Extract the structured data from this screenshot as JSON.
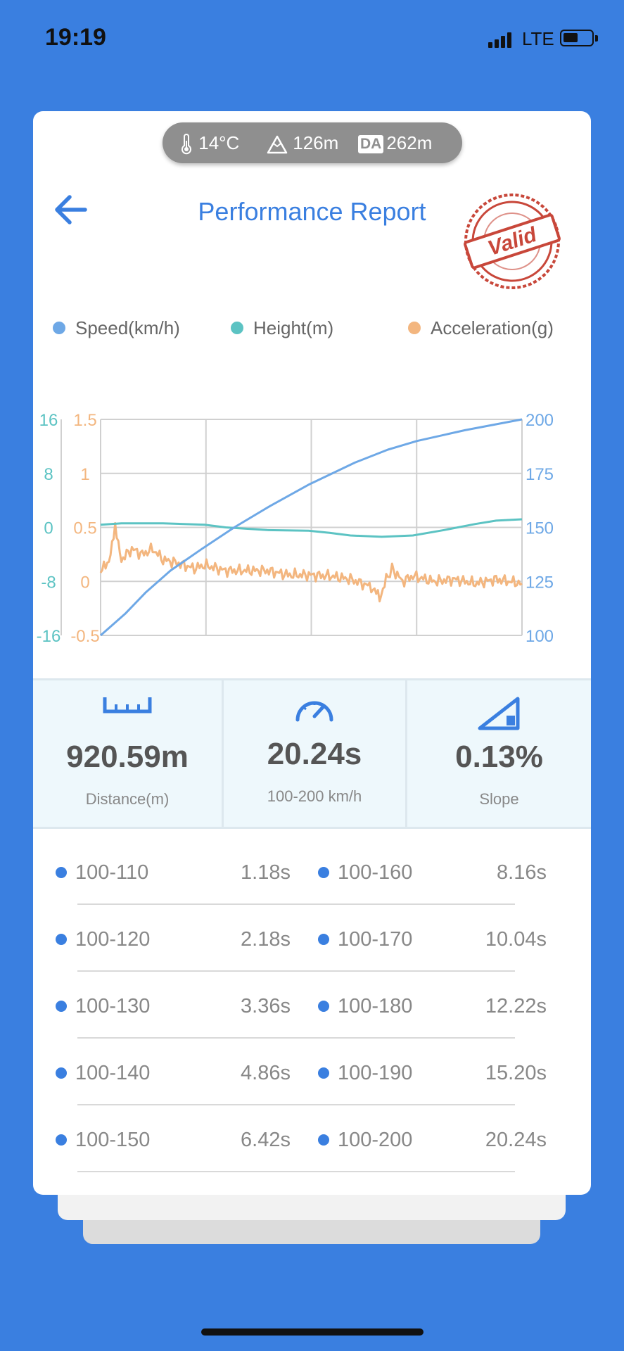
{
  "status_bar": {
    "time": "19:19",
    "network": "LTE"
  },
  "conditions": {
    "temperature": "14°C",
    "altitude": "126m",
    "da_label": "DA",
    "density_altitude": "262m"
  },
  "header": {
    "title": "Performance Report",
    "stamp_text": "Valid"
  },
  "legend": [
    {
      "label": "Speed(km/h)",
      "color": "#6ea8e6"
    },
    {
      "label": "Height(m)",
      "color": "#5cc3c3"
    },
    {
      "label": "Acceleration(g)",
      "color": "#f3b67f"
    }
  ],
  "chart_data": {
    "type": "line",
    "axes": {
      "height_ticks": [
        "16",
        "8",
        "0",
        "-8",
        "-16"
      ],
      "acceleration_ticks": [
        "1.5",
        "1",
        "0.5",
        "0",
        "-0.5"
      ],
      "speed_ticks": [
        "200",
        "175",
        "150",
        "125",
        "100"
      ],
      "height_range": [
        -16,
        16
      ],
      "acceleration_range": [
        -0.5,
        1.5
      ],
      "speed_range": [
        100,
        200
      ],
      "x_range": [
        0,
        20.24
      ]
    },
    "grid": true,
    "series": [
      {
        "name": "Speed(km/h)",
        "axis": "speed",
        "color": "#6ea8e6",
        "points": [
          [
            0,
            100
          ],
          [
            1.18,
            110
          ],
          [
            2.18,
            120
          ],
          [
            3.36,
            130
          ],
          [
            4.86,
            140
          ],
          [
            6.42,
            150
          ],
          [
            8.16,
            160
          ],
          [
            10.04,
            170
          ],
          [
            12.22,
            180
          ],
          [
            13.8,
            186
          ],
          [
            15.2,
            190
          ],
          [
            17.5,
            195
          ],
          [
            20.24,
            200
          ]
        ]
      },
      {
        "name": "Height(m)",
        "axis": "height",
        "color": "#5cc3c3",
        "points": [
          [
            0,
            0.4
          ],
          [
            1,
            0.6
          ],
          [
            3,
            0.6
          ],
          [
            5,
            0.4
          ],
          [
            6,
            0
          ],
          [
            8,
            -0.4
          ],
          [
            10,
            -0.5
          ],
          [
            11,
            -0.8
          ],
          [
            12,
            -1.2
          ],
          [
            13.5,
            -1.4
          ],
          [
            15,
            -1.2
          ],
          [
            16.5,
            -0.4
          ],
          [
            18,
            0.5
          ],
          [
            19,
            1
          ],
          [
            20.24,
            1.2
          ]
        ]
      },
      {
        "name": "Acceleration(g)",
        "axis": "acceleration",
        "color": "#f3b67f",
        "points": [
          [
            0,
            0.08
          ],
          [
            0.4,
            0.2
          ],
          [
            0.7,
            0.48
          ],
          [
            1,
            0.2
          ],
          [
            1.5,
            0.3
          ],
          [
            2,
            0.25
          ],
          [
            2.5,
            0.3
          ],
          [
            3,
            0.2
          ],
          [
            3.5,
            0.18
          ],
          [
            4,
            0.15
          ],
          [
            4.5,
            0.12
          ],
          [
            5,
            0.15
          ],
          [
            6,
            0.1
          ],
          [
            7,
            0.1
          ],
          [
            8,
            0.1
          ],
          [
            9,
            0.06
          ],
          [
            10,
            0.06
          ],
          [
            11,
            0.05
          ],
          [
            12,
            0.02
          ],
          [
            13,
            -0.05
          ],
          [
            13.4,
            -0.15
          ],
          [
            13.8,
            0.05
          ],
          [
            14,
            0.12
          ],
          [
            14.5,
            0.0
          ],
          [
            15,
            0.05
          ],
          [
            16,
            0.0
          ],
          [
            17,
            0.02
          ],
          [
            18,
            -0.02
          ],
          [
            19,
            0.02
          ],
          [
            20.24,
            -0.02
          ]
        ]
      }
    ]
  },
  "stats": [
    {
      "icon": "ruler-icon",
      "value": "920.59m",
      "label": "Distance(m)"
    },
    {
      "icon": "speedometer-icon",
      "value": "20.24s",
      "label": "100-200 km/h"
    },
    {
      "icon": "slope-icon",
      "value": "0.13%",
      "label": "Slope"
    }
  ],
  "splits": [
    {
      "left_range": "100-110",
      "left_time": "1.18s",
      "right_range": "100-160",
      "right_time": "8.16s"
    },
    {
      "left_range": "100-120",
      "left_time": "2.18s",
      "right_range": "100-170",
      "right_time": "10.04s"
    },
    {
      "left_range": "100-130",
      "left_time": "3.36s",
      "right_range": "100-180",
      "right_time": "12.22s"
    },
    {
      "left_range": "100-140",
      "left_time": "4.86s",
      "right_range": "100-190",
      "right_time": "15.20s"
    },
    {
      "left_range": "100-150",
      "left_time": "6.42s",
      "right_range": "100-200",
      "right_time": "20.24s"
    }
  ],
  "colors": {
    "background": "#3a7fe0",
    "accent": "#3a7fe0",
    "stamp": "#c8473a"
  }
}
